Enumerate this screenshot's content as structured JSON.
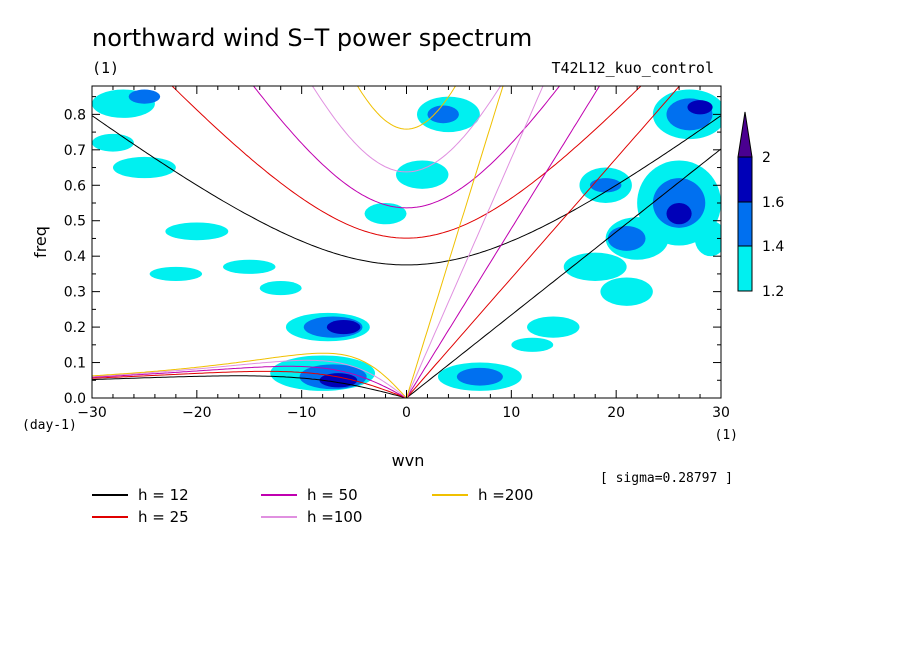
{
  "chart_data": {
    "type": "heatmap",
    "title": "northward wind S–T power spectrum",
    "left_sub": "(1)",
    "right_sub": "T42L12_kuo_control",
    "xlabel": "wvn",
    "ylabel": "freq",
    "xunit": "(1)",
    "yunit": "(day-1)",
    "xlim": [
      -30,
      30
    ],
    "ylim": [
      0,
      0.88
    ],
    "x_ticks": [
      -30,
      -20,
      -10,
      0,
      10,
      20,
      30
    ],
    "x_tick_labels": [
      "−30",
      "−20",
      "−10",
      "0",
      "10",
      "20",
      "30"
    ],
    "y_ticks": [
      0,
      0.1,
      0.2,
      0.3,
      0.4,
      0.5,
      0.6,
      0.7,
      0.8
    ],
    "y_tick_labels": [
      "0.0",
      "0.1",
      "0.2",
      "0.3",
      "0.4",
      "0.5",
      "0.6",
      "0.7",
      "0.8"
    ],
    "sigma_note": "[ sigma=0.28797 ]",
    "colorbar": {
      "levels": [
        1.2,
        1.4,
        1.6,
        2
      ],
      "labels": [
        "1.2",
        "1.4",
        "1.6",
        "2"
      ],
      "colors": [
        "#00f0f0",
        "#0070f0",
        "#0000b8",
        "#4a0090"
      ]
    },
    "series": [
      {
        "name": "h = 12",
        "color": "#000000"
      },
      {
        "name": "h = 25",
        "color": "#e00000"
      },
      {
        "name": "h = 50",
        "color": "#c000b0"
      },
      {
        "name": "h =100",
        "color": "#e090e0"
      },
      {
        "name": "h =200",
        "color": "#f0c000"
      }
    ],
    "equivalent_depths": [
      12,
      25,
      50,
      100,
      200
    ],
    "regions": [
      {
        "level": 1.2,
        "cx": -7.5,
        "cy": 0.2,
        "rx": 4.0,
        "ry": 0.04
      },
      {
        "level": 1.4,
        "cx": -7.0,
        "cy": 0.2,
        "rx": 2.8,
        "ry": 0.03
      },
      {
        "level": 1.6,
        "cx": -6.0,
        "cy": 0.2,
        "rx": 1.6,
        "ry": 0.02
      },
      {
        "level": 1.2,
        "cx": -8.0,
        "cy": 0.07,
        "rx": 5.0,
        "ry": 0.05
      },
      {
        "level": 1.4,
        "cx": -7.0,
        "cy": 0.06,
        "rx": 3.2,
        "ry": 0.035
      },
      {
        "level": 1.6,
        "cx": -6.5,
        "cy": 0.05,
        "rx": 1.8,
        "ry": 0.02
      },
      {
        "level": 1.2,
        "cx": 7.0,
        "cy": 0.06,
        "rx": 4.0,
        "ry": 0.04
      },
      {
        "level": 1.4,
        "cx": 7.0,
        "cy": 0.06,
        "rx": 2.2,
        "ry": 0.025
      },
      {
        "level": 1.2,
        "cx": 4.0,
        "cy": 0.8,
        "rx": 3.0,
        "ry": 0.05
      },
      {
        "level": 1.2,
        "cx": 1.5,
        "cy": 0.63,
        "rx": 2.5,
        "ry": 0.04
      },
      {
        "level": 1.4,
        "cx": 3.5,
        "cy": 0.8,
        "rx": 1.5,
        "ry": 0.025
      },
      {
        "level": 1.2,
        "cx": -2.0,
        "cy": 0.52,
        "rx": 2.0,
        "ry": 0.03
      },
      {
        "level": 1.2,
        "cx": -20.0,
        "cy": 0.47,
        "rx": 3.0,
        "ry": 0.025
      },
      {
        "level": 1.2,
        "cx": -25.0,
        "cy": 0.65,
        "rx": 3.0,
        "ry": 0.03
      },
      {
        "level": 1.2,
        "cx": -27.0,
        "cy": 0.83,
        "rx": 3.0,
        "ry": 0.04
      },
      {
        "level": 1.4,
        "cx": -25.0,
        "cy": 0.85,
        "rx": 1.5,
        "ry": 0.02
      },
      {
        "level": 1.2,
        "cx": -28.0,
        "cy": 0.72,
        "rx": 2.0,
        "ry": 0.025
      },
      {
        "level": 1.2,
        "cx": -15.0,
        "cy": 0.37,
        "rx": 2.5,
        "ry": 0.02
      },
      {
        "level": 1.2,
        "cx": -22.0,
        "cy": 0.35,
        "rx": 2.5,
        "ry": 0.02
      },
      {
        "level": 1.2,
        "cx": -12.0,
        "cy": 0.31,
        "rx": 2.0,
        "ry": 0.02
      },
      {
        "level": 1.2,
        "cx": 14.0,
        "cy": 0.2,
        "rx": 2.5,
        "ry": 0.03
      },
      {
        "level": 1.2,
        "cx": 18.0,
        "cy": 0.37,
        "rx": 3.0,
        "ry": 0.04
      },
      {
        "level": 1.2,
        "cx": 22.0,
        "cy": 0.45,
        "rx": 3.0,
        "ry": 0.06
      },
      {
        "level": 1.4,
        "cx": 21.0,
        "cy": 0.45,
        "rx": 1.8,
        "ry": 0.035
      },
      {
        "level": 1.2,
        "cx": 26.0,
        "cy": 0.55,
        "rx": 4.0,
        "ry": 0.12
      },
      {
        "level": 1.4,
        "cx": 26.0,
        "cy": 0.55,
        "rx": 2.5,
        "ry": 0.07
      },
      {
        "level": 1.6,
        "cx": 26.0,
        "cy": 0.52,
        "rx": 1.2,
        "ry": 0.03
      },
      {
        "level": 1.2,
        "cx": 27.0,
        "cy": 0.8,
        "rx": 3.5,
        "ry": 0.07
      },
      {
        "level": 1.4,
        "cx": 27.0,
        "cy": 0.8,
        "rx": 2.2,
        "ry": 0.045
      },
      {
        "level": 1.6,
        "cx": 28.0,
        "cy": 0.82,
        "rx": 1.2,
        "ry": 0.02
      },
      {
        "level": 1.2,
        "cx": 19.0,
        "cy": 0.6,
        "rx": 2.5,
        "ry": 0.05
      },
      {
        "level": 1.4,
        "cx": 19.0,
        "cy": 0.6,
        "rx": 1.5,
        "ry": 0.02
      },
      {
        "level": 1.2,
        "cx": 21.0,
        "cy": 0.3,
        "rx": 2.5,
        "ry": 0.04
      },
      {
        "level": 1.2,
        "cx": 12.0,
        "cy": 0.15,
        "rx": 2.0,
        "ry": 0.02
      },
      {
        "level": 1.2,
        "cx": 29.0,
        "cy": 0.45,
        "rx": 1.5,
        "ry": 0.05
      }
    ]
  }
}
